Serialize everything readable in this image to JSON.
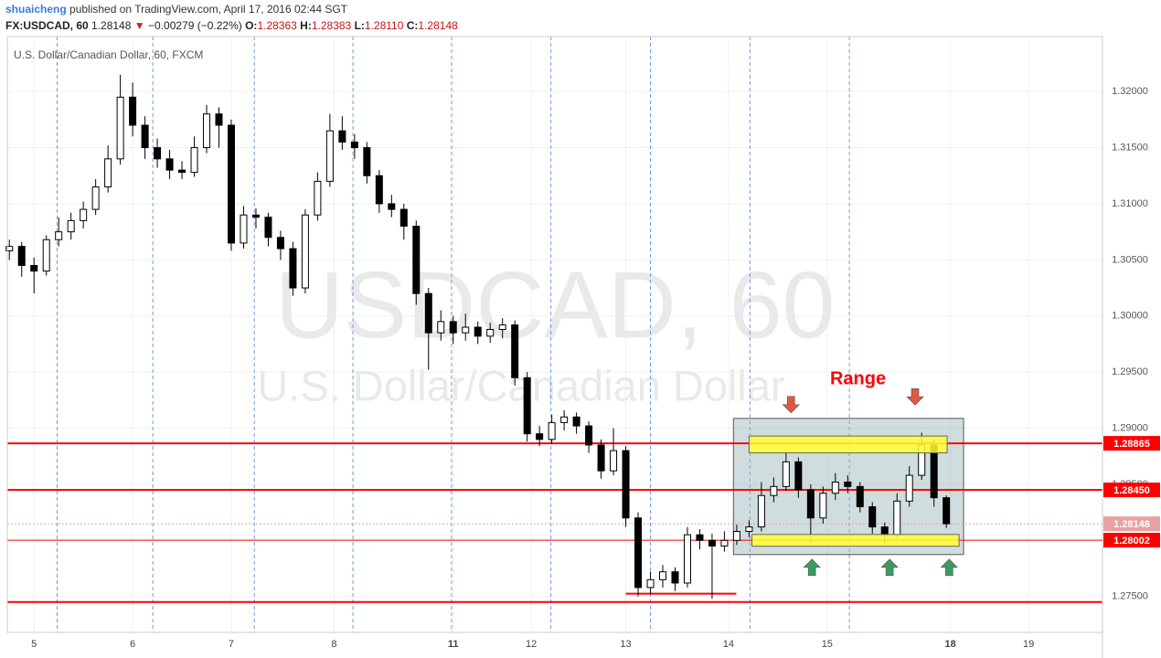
{
  "header": {
    "author": "shuaicheng",
    "published": "published on TradingView.com, April 17, 2016 02:44 SGT",
    "symbol": "FX:USDCAD, 60",
    "last": "1.28148",
    "arrow": "▼",
    "change": "−0.00279 (−0.22%)",
    "o_label": "O:",
    "o": "1.28363",
    "h_label": "H:",
    "h": "1.28383",
    "l_label": "L:",
    "l": "1.28110",
    "c_label": "C:",
    "c": "1.28148"
  },
  "chart_data": {
    "type": "candlestick",
    "watermark": [
      "USDCAD, 60",
      "U.S. Dollar/Canadian Dollar"
    ],
    "xlim": [
      -0.5,
      266
    ],
    "ylim": [
      1.2718,
      1.3249
    ],
    "grid": true,
    "xticks": [
      {
        "value": 6,
        "label": "5"
      },
      {
        "value": 30,
        "label": "6"
      },
      {
        "value": 54,
        "label": "7"
      },
      {
        "value": 79,
        "label": "8"
      },
      {
        "value": 108,
        "label": "11",
        "bold": true
      },
      {
        "value": 127,
        "label": "12"
      },
      {
        "value": 150,
        "label": "13"
      },
      {
        "value": 175,
        "label": "14"
      },
      {
        "value": 199,
        "label": "15"
      },
      {
        "value": 229,
        "label": "18",
        "bold": true
      },
      {
        "value": 248,
        "label": "19"
      }
    ],
    "yticks": [
      {
        "value": 1.275,
        "label": "1.27500"
      },
      {
        "value": 1.28,
        "label": "1.28000"
      },
      {
        "value": 1.285,
        "label": "1.28500"
      },
      {
        "value": 1.29,
        "label": "1.29000"
      },
      {
        "value": 1.295,
        "label": "1.29500"
      },
      {
        "value": 1.3,
        "label": "1.30000"
      },
      {
        "value": 1.305,
        "label": "1.30500"
      },
      {
        "value": 1.31,
        "label": "1.31000"
      },
      {
        "value": 1.315,
        "label": "1.31500"
      },
      {
        "value": 1.32,
        "label": "1.32000"
      }
    ],
    "session_breaks": [
      11.6,
      34.9,
      59.6,
      83.6,
      107.6,
      131.8,
      156,
      180.2,
      204.4
    ],
    "series": [
      {
        "name": "U.S. Dollar/Canadian Dollar, 60, FXCM",
        "up_color": "#ffffff",
        "down_color": "#000000",
        "x": [
          0,
          3,
          6,
          9,
          12,
          15,
          18,
          21,
          24,
          27,
          30,
          33,
          36,
          39,
          42,
          45,
          48,
          51,
          54,
          57,
          60,
          63,
          66,
          69,
          72,
          75,
          78,
          81,
          84,
          87,
          90,
          93,
          96,
          99,
          102,
          105,
          108,
          111,
          114,
          117,
          120,
          123,
          126,
          129,
          132,
          135,
          138,
          141,
          144,
          147,
          150,
          153,
          156,
          159,
          162,
          165,
          168,
          171,
          174,
          177,
          180,
          183,
          186,
          189,
          192,
          195,
          198,
          201,
          204,
          207,
          210,
          213,
          216,
          219,
          222,
          225,
          228
        ],
        "ohlc": [
          [
            1.3058,
            1.3068,
            1.305,
            1.3062
          ],
          [
            1.3062,
            1.3066,
            1.3035,
            1.3045
          ],
          [
            1.3045,
            1.3052,
            1.302,
            1.304
          ],
          [
            1.304,
            1.3072,
            1.3036,
            1.3068
          ],
          [
            1.3068,
            1.3088,
            1.3062,
            1.3075
          ],
          [
            1.3075,
            1.3092,
            1.3068,
            1.3085
          ],
          [
            1.3085,
            1.3102,
            1.3078,
            1.3095
          ],
          [
            1.3095,
            1.3122,
            1.309,
            1.3115
          ],
          [
            1.3115,
            1.3152,
            1.311,
            1.314
          ],
          [
            1.314,
            1.3215,
            1.3135,
            1.3195
          ],
          [
            1.3195,
            1.3208,
            1.316,
            1.317
          ],
          [
            1.317,
            1.3178,
            1.314,
            1.315
          ],
          [
            1.315,
            1.3158,
            1.3132,
            1.314
          ],
          [
            1.314,
            1.3148,
            1.3122,
            1.313
          ],
          [
            1.313,
            1.3138,
            1.3122,
            1.3128
          ],
          [
            1.3128,
            1.316,
            1.3124,
            1.315
          ],
          [
            1.315,
            1.3188,
            1.3145,
            1.318
          ],
          [
            1.318,
            1.3186,
            1.315,
            1.317
          ],
          [
            1.317,
            1.3175,
            1.3058,
            1.3065
          ],
          [
            1.3065,
            1.3098,
            1.306,
            1.309
          ],
          [
            1.309,
            1.3096,
            1.3078,
            1.3088
          ],
          [
            1.3088,
            1.3092,
            1.3062,
            1.307
          ],
          [
            1.307,
            1.3076,
            1.305,
            1.306
          ],
          [
            1.306,
            1.3066,
            1.3018,
            1.3025
          ],
          [
            1.3025,
            1.3095,
            1.302,
            1.309
          ],
          [
            1.309,
            1.3128,
            1.3085,
            1.312
          ],
          [
            1.312,
            1.318,
            1.3115,
            1.3165
          ],
          [
            1.3165,
            1.3178,
            1.3148,
            1.3155
          ],
          [
            1.3155,
            1.3162,
            1.314,
            1.315
          ],
          [
            1.315,
            1.3155,
            1.3118,
            1.3125
          ],
          [
            1.3125,
            1.313,
            1.3092,
            1.31
          ],
          [
            1.31,
            1.3108,
            1.3088,
            1.3095
          ],
          [
            1.3095,
            1.31,
            1.3068,
            1.308
          ],
          [
            1.308,
            1.3085,
            1.301,
            1.302
          ],
          [
            1.302,
            1.3025,
            1.2952,
            1.2985
          ],
          [
            1.2985,
            1.3005,
            1.2978,
            1.2995
          ],
          [
            1.2995,
            1.3,
            1.2975,
            1.2985
          ],
          [
            1.2985,
            1.3002,
            1.2978,
            1.299
          ],
          [
            1.299,
            1.2995,
            1.2975,
            1.2982
          ],
          [
            1.2982,
            1.2994,
            1.2976,
            1.2988
          ],
          [
            1.2988,
            1.2998,
            1.298,
            1.2992
          ],
          [
            1.2992,
            1.2996,
            1.2938,
            1.2945
          ],
          [
            1.2945,
            1.295,
            1.2888,
            1.2895
          ],
          [
            1.2895,
            1.2902,
            1.2884,
            1.289
          ],
          [
            1.289,
            1.2912,
            1.2886,
            1.2905
          ],
          [
            1.2905,
            1.2916,
            1.2898,
            1.291
          ],
          [
            1.291,
            1.2914,
            1.2895,
            1.2902
          ],
          [
            1.2902,
            1.2906,
            1.2878,
            1.2885
          ],
          [
            1.2885,
            1.289,
            1.2855,
            1.2862
          ],
          [
            1.2862,
            1.29,
            1.2858,
            1.288
          ],
          [
            1.288,
            1.2884,
            1.2812,
            1.282
          ],
          [
            1.282,
            1.2825,
            1.275,
            1.2758
          ],
          [
            1.2758,
            1.2772,
            1.2752,
            1.2765
          ],
          [
            1.2765,
            1.2778,
            1.2758,
            1.2772
          ],
          [
            1.2772,
            1.2776,
            1.2755,
            1.2762
          ],
          [
            1.2762,
            1.2812,
            1.2758,
            1.2805
          ],
          [
            1.2805,
            1.281,
            1.2792,
            1.28
          ],
          [
            1.28,
            1.2806,
            1.2748,
            1.2795
          ],
          [
            1.2795,
            1.2808,
            1.279,
            1.28
          ],
          [
            1.28,
            1.2814,
            1.2796,
            1.2808
          ],
          [
            1.2808,
            1.2818,
            1.2803,
            1.2812
          ],
          [
            1.2812,
            1.2852,
            1.2808,
            1.284
          ],
          [
            1.284,
            1.2856,
            1.2834,
            1.2848
          ],
          [
            1.2848,
            1.2878,
            1.2844,
            1.287
          ],
          [
            1.287,
            1.2874,
            1.2838,
            1.2845
          ],
          [
            1.2845,
            1.285,
            1.2798,
            1.282
          ],
          [
            1.282,
            1.2848,
            1.2815,
            1.2842
          ],
          [
            1.2842,
            1.286,
            1.2836,
            1.2852
          ],
          [
            1.2852,
            1.2858,
            1.2842,
            1.2848
          ],
          [
            1.2848,
            1.2852,
            1.2825,
            1.283
          ],
          [
            1.283,
            1.2834,
            1.2806,
            1.2812
          ],
          [
            1.2812,
            1.2816,
            1.2798,
            1.2805
          ],
          [
            1.2805,
            1.2842,
            1.2802,
            1.2835
          ],
          [
            1.2835,
            1.2866,
            1.283,
            1.2858
          ],
          [
            1.2858,
            1.2896,
            1.2854,
            1.2885
          ],
          [
            1.2885,
            1.289,
            1.283,
            1.2838
          ],
          [
            1.2838,
            1.284,
            1.2811,
            1.28148
          ]
        ]
      }
    ],
    "levels": [
      {
        "price": 1.28865,
        "label": "1.28865",
        "width": 2
      },
      {
        "price": 1.2845,
        "label": "1.28450",
        "width": 2
      },
      {
        "price": 1.28002,
        "label": "1.28002",
        "width": 1
      },
      {
        "price": 1.27451,
        "width": 2
      }
    ],
    "level_color": "#ff0000",
    "last_price": {
      "price": 1.28148,
      "label": "1.28148",
      "color": "#e8a0a0"
    },
    "support_segment": {
      "x": [
        150,
        176.9
      ],
      "price": 1.27525
    },
    "range_box": {
      "x": [
        176.2,
        232.2
      ],
      "price": [
        1.27874,
        1.29087
      ],
      "color": "rgba(150,180,185,0.45)"
    },
    "zones": [
      {
        "x": [
          180,
          228.2
        ],
        "price": [
          1.2878,
          1.2893
        ]
      },
      {
        "x": [
          180.7,
          231.1
        ],
        "price": [
          1.27948,
          1.28053
        ]
      }
    ],
    "zone_color": "#ffff33",
    "annotation": {
      "text": "Range",
      "x": 206.5,
      "price": 1.29435,
      "color": "#ff0000"
    },
    "arrows": [
      {
        "x": 190.2,
        "price": 1.2921,
        "dir": "down",
        "color": "#e0583f"
      },
      {
        "x": 220.4,
        "price": 1.2928,
        "dir": "down",
        "color": "#e0583f"
      },
      {
        "x": 195.3,
        "price": 1.2776,
        "dir": "up",
        "color": "#3a9a60"
      },
      {
        "x": 214.2,
        "price": 1.2776,
        "dir": "up",
        "color": "#3a9a60"
      },
      {
        "x": 228.7,
        "price": 1.2776,
        "dir": "up",
        "color": "#3a9a60"
      }
    ]
  }
}
